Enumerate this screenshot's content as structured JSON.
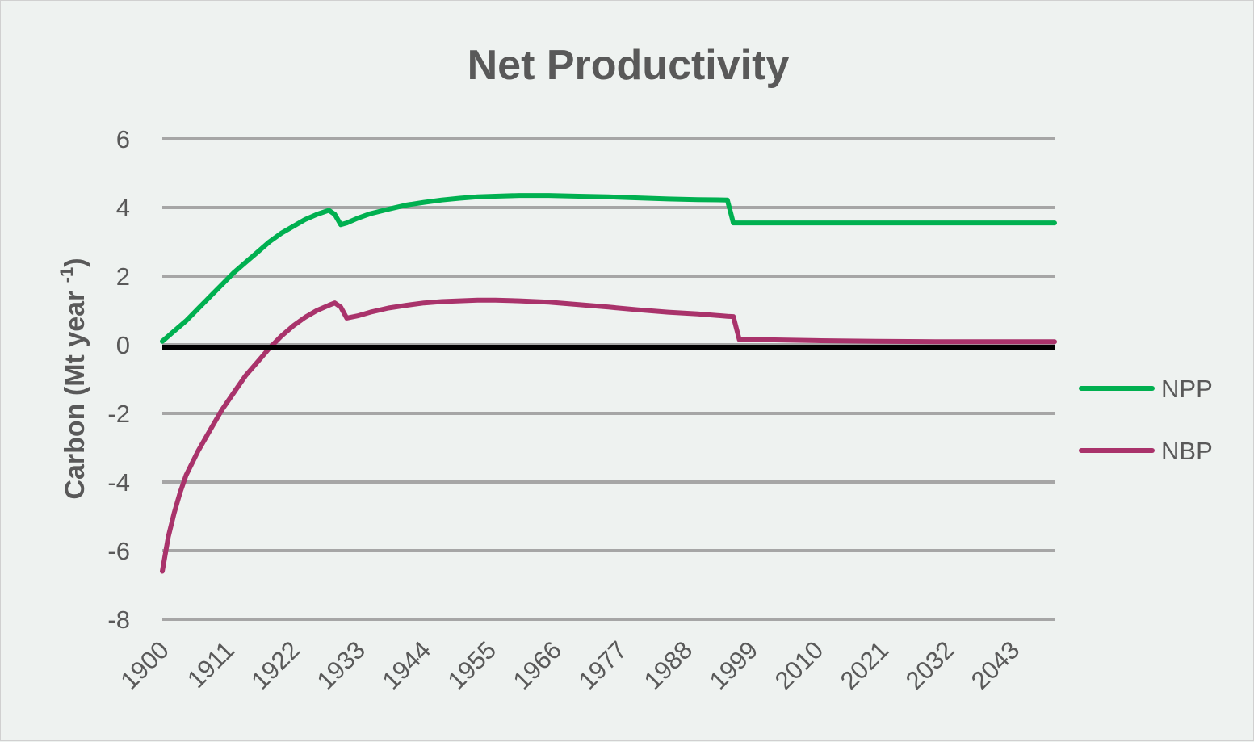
{
  "chart_data": {
    "type": "line",
    "title": "Net Productivity",
    "ylabel": "Carbon (Mt year -1)",
    "ylabel_parts": {
      "main": "Carbon (Mt year ",
      "sup": "-1",
      "close": ")"
    },
    "xlabel": "",
    "ylim": [
      -8,
      6
    ],
    "yticks": [
      "6",
      "4",
      "2",
      "0",
      "-2",
      "-4",
      "-6",
      "-8"
    ],
    "ytick_values": [
      6,
      4,
      2,
      0,
      -2,
      -4,
      -6,
      -8
    ],
    "xlim": [
      1900,
      2050
    ],
    "xticks": [
      "1900",
      "1911",
      "1922",
      "1933",
      "1944",
      "1955",
      "1966",
      "1977",
      "1988",
      "1999",
      "2010",
      "2021",
      "2032",
      "2043"
    ],
    "xtick_values": [
      1900,
      1911,
      1922,
      1933,
      1944,
      1955,
      1966,
      1977,
      1988,
      1999,
      2010,
      2021,
      2032,
      2043
    ],
    "grid": true,
    "zero_line": true,
    "legend_position": "right",
    "series": [
      {
        "name": "NPP",
        "color": "#00b050",
        "x": [
          1900,
          1902,
          1904,
          1906,
          1908,
          1910,
          1912,
          1914,
          1916,
          1918,
          1920,
          1922,
          1924,
          1926,
          1928,
          1929,
          1930,
          1931,
          1933,
          1935,
          1938,
          1941,
          1944,
          1947,
          1950,
          1953,
          1956,
          1960,
          1965,
          1970,
          1975,
          1980,
          1985,
          1990,
          1995,
          1996,
          1997,
          2000,
          2010,
          2020,
          2030,
          2040,
          2050
        ],
        "y": [
          0.1,
          0.4,
          0.7,
          1.05,
          1.4,
          1.75,
          2.1,
          2.4,
          2.7,
          3.0,
          3.25,
          3.45,
          3.65,
          3.8,
          3.92,
          3.8,
          3.5,
          3.55,
          3.7,
          3.82,
          3.95,
          4.07,
          4.15,
          4.22,
          4.27,
          4.31,
          4.33,
          4.35,
          4.35,
          4.33,
          4.31,
          4.28,
          4.25,
          4.23,
          4.22,
          3.55,
          3.55,
          3.55,
          3.55,
          3.55,
          3.55,
          3.55,
          3.55
        ]
      },
      {
        "name": "NBP",
        "color": "#a9336b",
        "x": [
          1900,
          1900.5,
          1901,
          1902,
          1903,
          1904,
          1906,
          1908,
          1910,
          1912,
          1914,
          1916,
          1918,
          1920,
          1922,
          1924,
          1926,
          1928,
          1929,
          1930,
          1931,
          1933,
          1935,
          1938,
          1941,
          1944,
          1947,
          1950,
          1953,
          1956,
          1960,
          1965,
          1970,
          1975,
          1980,
          1985,
          1990,
          1995,
          1996,
          1997,
          2000,
          2010,
          2020,
          2030,
          2040,
          2050
        ],
        "y": [
          -6.6,
          -6.1,
          -5.6,
          -4.9,
          -4.3,
          -3.8,
          -3.1,
          -2.5,
          -1.9,
          -1.4,
          -0.9,
          -0.5,
          -0.1,
          0.25,
          0.55,
          0.8,
          1.0,
          1.15,
          1.22,
          1.1,
          0.78,
          0.85,
          0.95,
          1.07,
          1.15,
          1.22,
          1.26,
          1.28,
          1.3,
          1.3,
          1.28,
          1.24,
          1.17,
          1.1,
          1.02,
          0.95,
          0.9,
          0.83,
          0.82,
          0.15,
          0.15,
          0.12,
          0.1,
          0.09,
          0.09,
          0.09
        ]
      }
    ]
  }
}
